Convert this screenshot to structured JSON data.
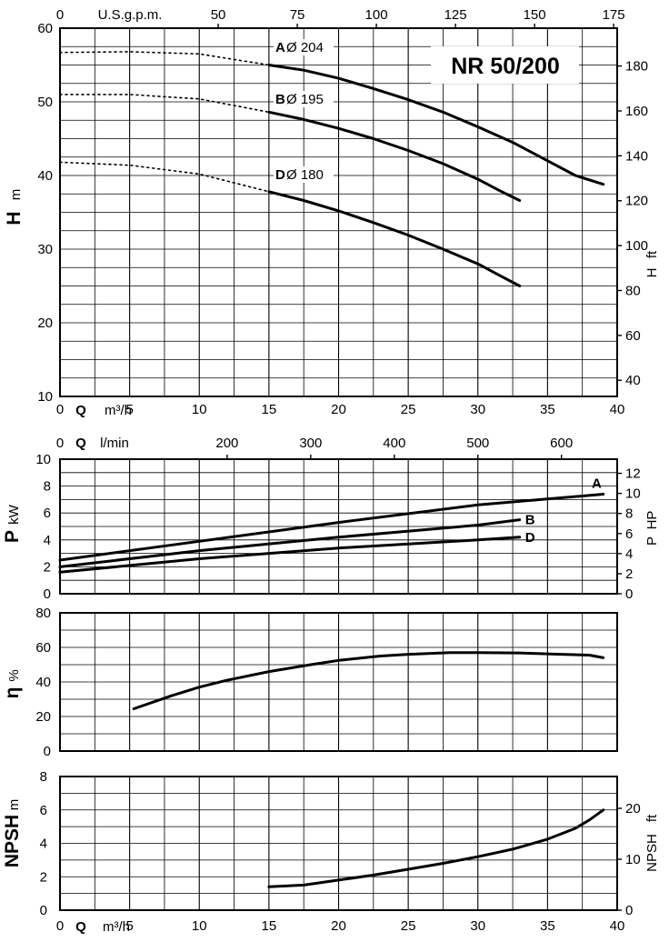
{
  "model": "NR 50/200",
  "chart_data": [
    {
      "id": "head",
      "type": "line",
      "title": "NR 50/200",
      "xlabel": "Q",
      "xunit": "m³/h",
      "xlim": [
        0,
        40
      ],
      "xticks": [
        0,
        5,
        10,
        15,
        20,
        25,
        30,
        35,
        40
      ],
      "ylabel": "H",
      "yunit": "m",
      "ylim": [
        10,
        60
      ],
      "yticks": [
        10,
        20,
        30,
        40,
        50,
        60
      ],
      "y2label": "H",
      "y2unit": "ft",
      "y2ticks": [
        40,
        60,
        80,
        100,
        120,
        140,
        160,
        180
      ],
      "x2label": "U.S.g.p.m.",
      "x2ticks": [
        0,
        50,
        75,
        100,
        125,
        150,
        175
      ],
      "grid": true,
      "series": [
        {
          "name": "A",
          "diameter_label": "Ø 204",
          "dotted": [
            [
              0,
              56.7
            ],
            [
              5,
              56.8
            ],
            [
              10,
              56.5
            ],
            [
              15,
              55.0
            ]
          ],
          "values": [
            [
              15,
              55.0
            ],
            [
              17.5,
              54.3
            ],
            [
              20,
              53.2
            ],
            [
              22.5,
              51.8
            ],
            [
              25,
              50.3
            ],
            [
              27.5,
              48.6
            ],
            [
              30,
              46.6
            ],
            [
              32.5,
              44.5
            ],
            [
              35,
              42.0
            ],
            [
              37,
              40.0
            ],
            [
              39,
              38.8
            ]
          ]
        },
        {
          "name": "B",
          "diameter_label": "Ø 195",
          "dotted": [
            [
              0,
              51.0
            ],
            [
              5,
              51.0
            ],
            [
              10,
              50.4
            ],
            [
              15,
              48.6
            ]
          ],
          "values": [
            [
              15,
              48.6
            ],
            [
              17.5,
              47.6
            ],
            [
              20,
              46.4
            ],
            [
              22.5,
              45.0
            ],
            [
              25,
              43.4
            ],
            [
              27.5,
              41.6
            ],
            [
              30,
              39.5
            ],
            [
              31.5,
              38.0
            ],
            [
              33,
              36.6
            ]
          ]
        },
        {
          "name": "D",
          "diameter_label": "Ø 180",
          "dotted": [
            [
              0,
              41.8
            ],
            [
              5,
              41.4
            ],
            [
              10,
              40.2
            ],
            [
              15,
              37.8
            ]
          ],
          "values": [
            [
              15,
              37.8
            ],
            [
              17.5,
              36.6
            ],
            [
              20,
              35.2
            ],
            [
              22.5,
              33.6
            ],
            [
              25,
              31.9
            ],
            [
              27.5,
              30.0
            ],
            [
              30,
              28.0
            ],
            [
              31.5,
              26.5
            ],
            [
              33,
              25.0
            ]
          ]
        }
      ]
    },
    {
      "id": "power",
      "type": "line",
      "xlabel": "Q",
      "xunit": "l/min",
      "xticks": [
        0,
        200,
        300,
        400,
        500,
        600
      ],
      "xlim": [
        0,
        40
      ],
      "ylabel": "P",
      "yunit": "kW",
      "ylim": [
        0,
        10
      ],
      "yticks": [
        0,
        2,
        4,
        6,
        8,
        10
      ],
      "y2label": "P",
      "y2unit": "HP",
      "y2ticks": [
        0,
        2,
        4,
        6,
        8,
        10,
        12
      ],
      "grid": true,
      "series": [
        {
          "name": "A",
          "values": [
            [
              0,
              2.5
            ],
            [
              10,
              3.9
            ],
            [
              20,
              5.3
            ],
            [
              30,
              6.6
            ],
            [
              39,
              7.4
            ]
          ]
        },
        {
          "name": "B",
          "values": [
            [
              0,
              2.0
            ],
            [
              10,
              3.2
            ],
            [
              20,
              4.2
            ],
            [
              30,
              5.1
            ],
            [
              33,
              5.5
            ]
          ]
        },
        {
          "name": "D",
          "values": [
            [
              0,
              1.6
            ],
            [
              10,
              2.6
            ],
            [
              20,
              3.4
            ],
            [
              30,
              4.0
            ],
            [
              33,
              4.2
            ]
          ]
        }
      ]
    },
    {
      "id": "efficiency",
      "type": "line",
      "xlim": [
        0,
        40
      ],
      "ylabel": "η",
      "yunit": "%",
      "ylim": [
        0,
        80
      ],
      "yticks": [
        0,
        20,
        40,
        60,
        80
      ],
      "grid": true,
      "series": [
        {
          "name": "",
          "values": [
            [
              5.3,
              24.5
            ],
            [
              8,
              32
            ],
            [
              10,
              37
            ],
            [
              12,
              41
            ],
            [
              15,
              46
            ],
            [
              18,
              50
            ],
            [
              20,
              52.5
            ],
            [
              23,
              55
            ],
            [
              25,
              56
            ],
            [
              28,
              57
            ],
            [
              30,
              57
            ],
            [
              33,
              56.8
            ],
            [
              36,
              56
            ],
            [
              38,
              55.5
            ],
            [
              39,
              54
            ]
          ]
        }
      ]
    },
    {
      "id": "npsh",
      "type": "line",
      "xlabel": "Q",
      "xunit": "m³/h",
      "xlim": [
        0,
        40
      ],
      "xticks": [
        0,
        5,
        10,
        15,
        20,
        25,
        30,
        35,
        40
      ],
      "ylabel": "NPSH",
      "yunit": "m",
      "ylim": [
        0,
        8
      ],
      "yticks": [
        0,
        2,
        4,
        6,
        8
      ],
      "y2label": "NPSH",
      "y2unit": "ft",
      "y2ticks": [
        0,
        10,
        20
      ],
      "grid": true,
      "series": [
        {
          "name": "",
          "values": [
            [
              15,
              1.4
            ],
            [
              17.5,
              1.5
            ],
            [
              20,
              1.8
            ],
            [
              22.5,
              2.1
            ],
            [
              25,
              2.45
            ],
            [
              27.5,
              2.8
            ],
            [
              30,
              3.2
            ],
            [
              32.5,
              3.65
            ],
            [
              35,
              4.25
            ],
            [
              37,
              4.9
            ],
            [
              38,
              5.4
            ],
            [
              39,
              6.0
            ]
          ]
        }
      ]
    }
  ]
}
